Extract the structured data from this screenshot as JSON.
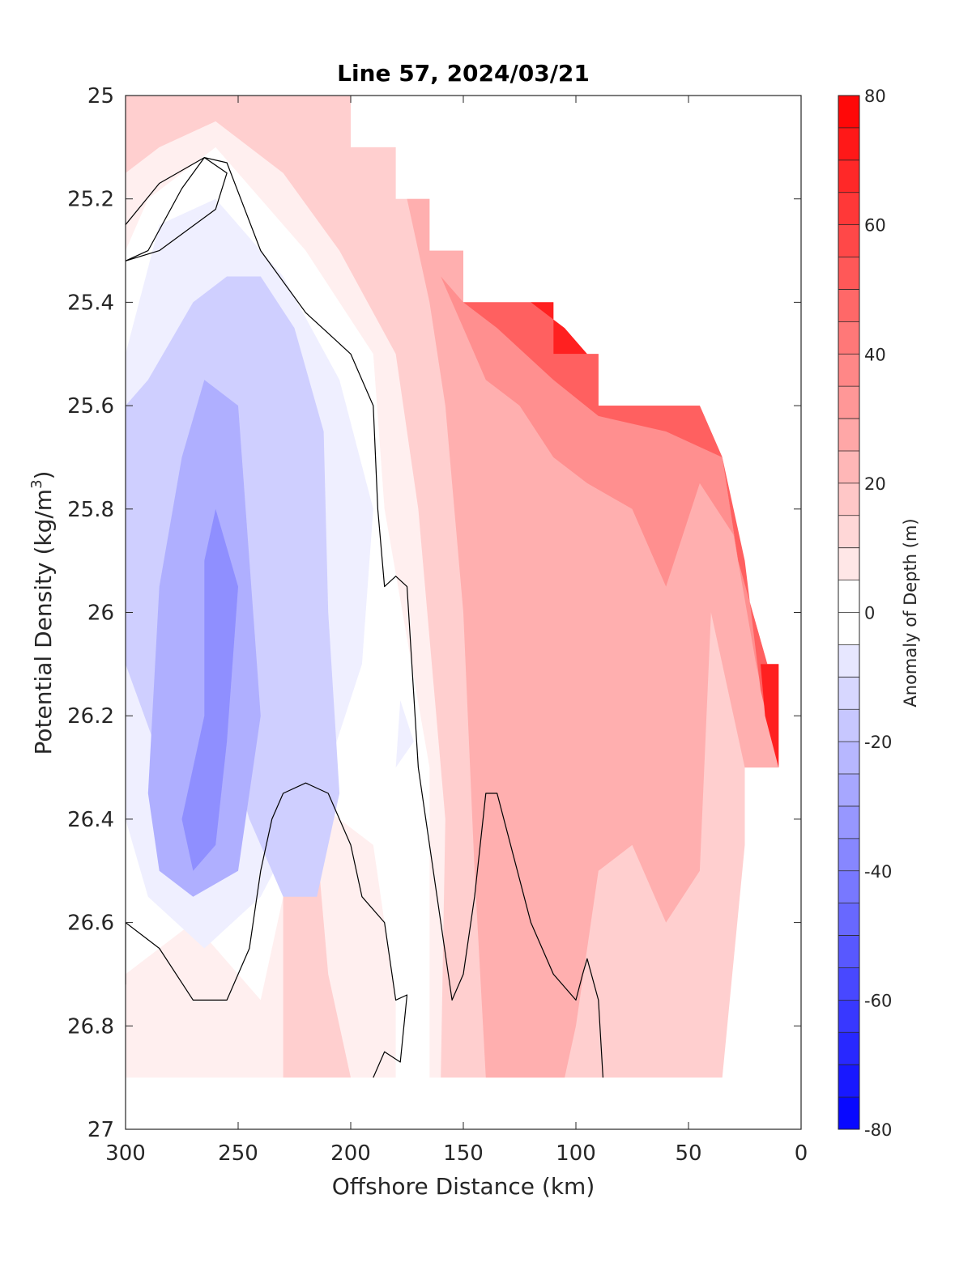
{
  "chart_data": {
    "type": "contourf",
    "title": "Line 57, 2024/03/21",
    "xlabel": "Offshore Distance (km)",
    "ylabel_main": "Potential Density (kg/m",
    "ylabel_sup": "3",
    "ylabel_close": ")",
    "colorbar_label": "Anomaly of Depth (m)",
    "x_reversed": true,
    "xlim": [
      0,
      300
    ],
    "ylim": [
      25,
      27
    ],
    "y_reversed": true,
    "xticks": [
      300,
      250,
      200,
      150,
      100,
      50,
      0
    ],
    "yticks": [
      25,
      25.2,
      25.4,
      25.6,
      25.8,
      26,
      26.2,
      26.4,
      26.6,
      26.8,
      27
    ],
    "ytick_labels": [
      "25",
      "25.2",
      "25.4",
      "25.6",
      "25.8",
      "26",
      "26.2",
      "26.4",
      "26.6",
      "26.8",
      "27"
    ],
    "clim": [
      -80,
      80
    ],
    "colorbar_ticks": [
      80,
      60,
      40,
      20,
      0,
      -20,
      -40,
      -60,
      -80
    ],
    "contour_step": 5,
    "zero_contour_color": "#000000",
    "colormap": "blue-white-red",
    "data_extent": {
      "sigma_bottom": 26.9,
      "upper_boundary": [
        {
          "x": 300,
          "sigma": 25.0
        },
        {
          "x": 200,
          "sigma": 25.0
        },
        {
          "x": 200,
          "sigma": 25.1
        },
        {
          "x": 180,
          "sigma": 25.1
        },
        {
          "x": 180,
          "sigma": 25.2
        },
        {
          "x": 165,
          "sigma": 25.2
        },
        {
          "x": 165,
          "sigma": 25.3
        },
        {
          "x": 150,
          "sigma": 25.3
        },
        {
          "x": 150,
          "sigma": 25.4
        },
        {
          "x": 110,
          "sigma": 25.4
        },
        {
          "x": 110,
          "sigma": 25.5
        },
        {
          "x": 90,
          "sigma": 25.5
        },
        {
          "x": 90,
          "sigma": 25.6
        },
        {
          "x": 45,
          "sigma": 25.6
        },
        {
          "x": 35,
          "sigma": 25.7
        },
        {
          "x": 28,
          "sigma": 25.9
        },
        {
          "x": 15,
          "sigma": 26.1
        },
        {
          "x": 10,
          "sigma": 26.1
        },
        {
          "x": 10,
          "sigma": 26.3
        }
      ]
    },
    "anomaly_regions": [
      {
        "level": 5,
        "points": [
          [
            300,
            25.0
          ],
          [
            200,
            25.0
          ],
          [
            200,
            25.1
          ],
          [
            180,
            25.1
          ],
          [
            180,
            25.2
          ],
          [
            165,
            25.2
          ],
          [
            165,
            25.3
          ],
          [
            150,
            25.3
          ],
          [
            150,
            25.4
          ],
          [
            110,
            25.4
          ],
          [
            110,
            25.5
          ],
          [
            90,
            25.5
          ],
          [
            90,
            25.6
          ],
          [
            45,
            25.6
          ],
          [
            35,
            25.7
          ],
          [
            28,
            25.9
          ],
          [
            15,
            26.1
          ],
          [
            10,
            26.1
          ],
          [
            10,
            26.3
          ],
          [
            25,
            26.3
          ],
          [
            25,
            26.4
          ],
          [
            30,
            26.5
          ],
          [
            35,
            26.9
          ],
          [
            165,
            26.9
          ],
          [
            165,
            26.3
          ],
          [
            185,
            25.8
          ],
          [
            190,
            25.5
          ],
          [
            220,
            25.3
          ],
          [
            260,
            25.1
          ],
          [
            290,
            25.2
          ],
          [
            300,
            25.3
          ]
        ]
      },
      {
        "level": 5,
        "points": [
          [
            300,
            26.9
          ],
          [
            300,
            26.7
          ],
          [
            270,
            26.6
          ],
          [
            240,
            26.75
          ],
          [
            220,
            26.35
          ],
          [
            190,
            26.45
          ],
          [
            180,
            26.75
          ],
          [
            180,
            26.9
          ]
        ]
      },
      {
        "level": 15,
        "points": [
          [
            300,
            25.0
          ],
          [
            200,
            25.0
          ],
          [
            200,
            25.1
          ],
          [
            180,
            25.1
          ],
          [
            180,
            25.2
          ],
          [
            165,
            25.2
          ],
          [
            165,
            25.3
          ],
          [
            150,
            25.3
          ],
          [
            150,
            25.4
          ],
          [
            110,
            25.4
          ],
          [
            110,
            25.5
          ],
          [
            90,
            25.5
          ],
          [
            90,
            25.6
          ],
          [
            45,
            25.6
          ],
          [
            35,
            25.7
          ],
          [
            28,
            25.9
          ],
          [
            15,
            26.1
          ],
          [
            10,
            26.1
          ],
          [
            10,
            26.3
          ],
          [
            25,
            26.3
          ],
          [
            25,
            26.45
          ],
          [
            35,
            26.9
          ],
          [
            160,
            26.9
          ],
          [
            158,
            26.4
          ],
          [
            170,
            25.8
          ],
          [
            180,
            25.5
          ],
          [
            205,
            25.3
          ],
          [
            230,
            25.15
          ],
          [
            260,
            25.05
          ],
          [
            285,
            25.1
          ],
          [
            300,
            25.15
          ]
        ]
      },
      {
        "level": 15,
        "points": [
          [
            230,
            26.9
          ],
          [
            230,
            26.5
          ],
          [
            215,
            26.45
          ],
          [
            210,
            26.7
          ],
          [
            200,
            26.9
          ]
        ]
      },
      {
        "level": 25,
        "points": [
          [
            175,
            25.2
          ],
          [
            165,
            25.2
          ],
          [
            165,
            25.3
          ],
          [
            150,
            25.3
          ],
          [
            150,
            25.4
          ],
          [
            110,
            25.4
          ],
          [
            110,
            25.5
          ],
          [
            90,
            25.5
          ],
          [
            90,
            25.6
          ],
          [
            45,
            25.6
          ],
          [
            35,
            25.7
          ],
          [
            28,
            25.9
          ],
          [
            15,
            26.1
          ],
          [
            10,
            26.1
          ],
          [
            10,
            26.3
          ],
          [
            25,
            26.3
          ],
          [
            30,
            26.2
          ],
          [
            40,
            26.0
          ],
          [
            45,
            26.5
          ],
          [
            60,
            26.6
          ],
          [
            75,
            26.45
          ],
          [
            90,
            26.5
          ],
          [
            100,
            26.8
          ],
          [
            105,
            26.9
          ],
          [
            140,
            26.9
          ],
          [
            145,
            26.5
          ],
          [
            150,
            26.0
          ],
          [
            158,
            25.6
          ],
          [
            165,
            25.4
          ]
        ]
      },
      {
        "level": 35,
        "points": [
          [
            160,
            25.35
          ],
          [
            150,
            25.4
          ],
          [
            110,
            25.4
          ],
          [
            110,
            25.5
          ],
          [
            90,
            25.5
          ],
          [
            90,
            25.6
          ],
          [
            45,
            25.6
          ],
          [
            35,
            25.7
          ],
          [
            28,
            25.9
          ],
          [
            15,
            26.1
          ],
          [
            10,
            26.1
          ],
          [
            10,
            26.3
          ],
          [
            20,
            26.1
          ],
          [
            30,
            25.85
          ],
          [
            45,
            25.75
          ],
          [
            60,
            25.95
          ],
          [
            75,
            25.8
          ],
          [
            95,
            25.75
          ],
          [
            110,
            25.7
          ],
          [
            125,
            25.6
          ],
          [
            140,
            25.55
          ],
          [
            150,
            25.45
          ]
        ]
      },
      {
        "level": 50,
        "points": [
          [
            150,
            25.4
          ],
          [
            110,
            25.4
          ],
          [
            110,
            25.5
          ],
          [
            90,
            25.5
          ],
          [
            90,
            25.6
          ],
          [
            45,
            25.6
          ],
          [
            35,
            25.7
          ],
          [
            28,
            25.9
          ],
          [
            15,
            26.1
          ],
          [
            10,
            26.1
          ],
          [
            10,
            26.3
          ],
          [
            18,
            26.15
          ],
          [
            25,
            25.9
          ],
          [
            35,
            25.7
          ],
          [
            60,
            25.65
          ],
          [
            90,
            25.62
          ],
          [
            110,
            25.55
          ],
          [
            135,
            25.45
          ]
        ]
      },
      {
        "level": 70,
        "points": [
          [
            120,
            25.4
          ],
          [
            110,
            25.4
          ],
          [
            110,
            25.5
          ],
          [
            95,
            25.5
          ],
          [
            105,
            25.45
          ]
        ]
      },
      {
        "level": 70,
        "points": [
          [
            18,
            26.1
          ],
          [
            10,
            26.1
          ],
          [
            10,
            26.3
          ],
          [
            16,
            26.2
          ]
        ]
      },
      {
        "level": -5,
        "points": [
          [
            300,
            25.5
          ],
          [
            285,
            25.25
          ],
          [
            260,
            25.2
          ],
          [
            230,
            25.35
          ],
          [
            205,
            25.55
          ],
          [
            190,
            25.8
          ],
          [
            195,
            26.1
          ],
          [
            210,
            26.3
          ],
          [
            240,
            26.55
          ],
          [
            265,
            26.65
          ],
          [
            290,
            26.55
          ],
          [
            300,
            26.4
          ]
        ]
      },
      {
        "level": -5,
        "points": [
          [
            178,
            26.17
          ],
          [
            172,
            26.25
          ],
          [
            180,
            26.3
          ]
        ]
      },
      {
        "level": -15,
        "points": [
          [
            300,
            26.1
          ],
          [
            285,
            26.28
          ],
          [
            255,
            26.25
          ],
          [
            245,
            26.4
          ],
          [
            230,
            26.55
          ],
          [
            215,
            26.55
          ],
          [
            205,
            26.35
          ],
          [
            210,
            26.0
          ],
          [
            212,
            25.65
          ],
          [
            225,
            25.45
          ],
          [
            240,
            25.35
          ],
          [
            255,
            25.35
          ],
          [
            270,
            25.4
          ],
          [
            290,
            25.55
          ],
          [
            300,
            25.6
          ]
        ]
      },
      {
        "level": -25,
        "points": [
          [
            270,
            26.55
          ],
          [
            250,
            26.5
          ],
          [
            240,
            26.2
          ],
          [
            245,
            25.9
          ],
          [
            250,
            25.6
          ],
          [
            265,
            25.55
          ],
          [
            275,
            25.7
          ],
          [
            285,
            25.95
          ],
          [
            290,
            26.35
          ],
          [
            285,
            26.5
          ]
        ]
      },
      {
        "level": -35,
        "points": [
          [
            270,
            26.5
          ],
          [
            260,
            26.45
          ],
          [
            255,
            26.25
          ],
          [
            250,
            25.95
          ],
          [
            260,
            25.8
          ],
          [
            265,
            25.9
          ],
          [
            265,
            26.2
          ],
          [
            275,
            26.4
          ]
        ]
      }
    ],
    "zero_contours": [
      [
        [
          300,
          25.32
        ],
        [
          285,
          25.3
        ],
        [
          260,
          25.22
        ],
        [
          255,
          25.15
        ],
        [
          265,
          25.12
        ],
        [
          285,
          25.17
        ],
        [
          300,
          25.25
        ]
      ],
      [
        [
          300,
          25.32
        ],
        [
          290,
          25.3
        ],
        [
          275,
          25.18
        ],
        [
          265,
          25.12
        ],
        [
          255,
          25.13
        ],
        [
          240,
          25.3
        ],
        [
          220,
          25.42
        ],
        [
          210,
          25.46
        ],
        [
          200,
          25.5
        ],
        [
          195,
          25.55
        ],
        [
          190,
          25.6
        ],
        [
          188,
          25.8
        ],
        [
          185,
          25.95
        ],
        [
          180,
          25.93
        ],
        [
          175,
          25.95
        ],
        [
          170,
          26.3
        ],
        [
          160,
          26.6
        ],
        [
          155,
          26.75
        ],
        [
          150,
          26.7
        ],
        [
          145,
          26.55
        ],
        [
          140,
          26.35
        ],
        [
          135,
          26.35
        ],
        [
          120,
          26.6
        ],
        [
          110,
          26.7
        ],
        [
          100,
          26.75
        ],
        [
          97,
          26.7
        ],
        [
          95,
          26.67
        ],
        [
          90,
          26.75
        ],
        [
          88,
          26.9
        ]
      ],
      [
        [
          300,
          26.72
        ],
        [
          300,
          26.6
        ],
        [
          285,
          26.65
        ],
        [
          270,
          26.75
        ],
        [
          255,
          26.75
        ],
        [
          245,
          26.65
        ],
        [
          240,
          26.5
        ],
        [
          235,
          26.4
        ],
        [
          230,
          26.35
        ],
        [
          220,
          26.33
        ],
        [
          210,
          26.35
        ],
        [
          200,
          26.45
        ],
        [
          195,
          26.55
        ],
        [
          185,
          26.6
        ],
        [
          180,
          26.75
        ],
        [
          175,
          26.74
        ],
        [
          178,
          26.87
        ],
        [
          185,
          26.85
        ],
        [
          190,
          26.9
        ]
      ]
    ]
  }
}
